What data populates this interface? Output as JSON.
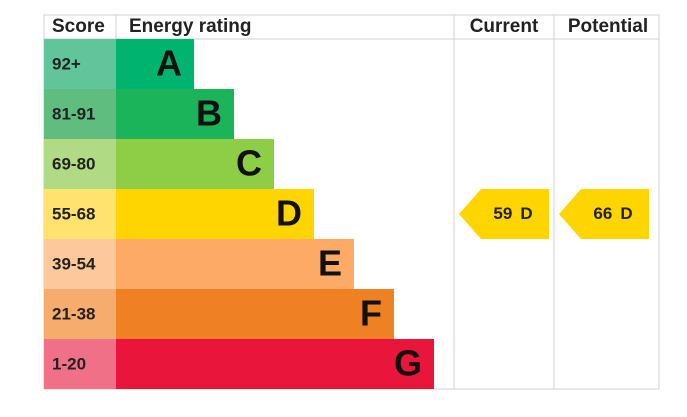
{
  "header": {
    "score": "Score",
    "rating": "Energy rating",
    "current": "Current",
    "potential": "Potential"
  },
  "bands": [
    {
      "score": "92+",
      "letter": "A",
      "color": "#00b46f",
      "light": "#62c49a"
    },
    {
      "score": "81-91",
      "letter": "B",
      "color": "#1bb45a",
      "light": "#5fbd80"
    },
    {
      "score": "69-80",
      "letter": "C",
      "color": "#8dce46",
      "light": "#b0da84"
    },
    {
      "score": "55-68",
      "letter": "D",
      "color": "#ffd500",
      "light": "#ffe36e"
    },
    {
      "score": "39-54",
      "letter": "E",
      "color": "#fcaa65",
      "light": "#fdc89b"
    },
    {
      "score": "21-38",
      "letter": "F",
      "color": "#ef8023",
      "light": "#f5ac6d"
    },
    {
      "score": "1-20",
      "letter": "G",
      "color": "#e9153b",
      "light": "#f07088"
    }
  ],
  "current": {
    "score": 59,
    "rating": "D"
  },
  "potential": {
    "score": 66,
    "rating": "D"
  }
}
